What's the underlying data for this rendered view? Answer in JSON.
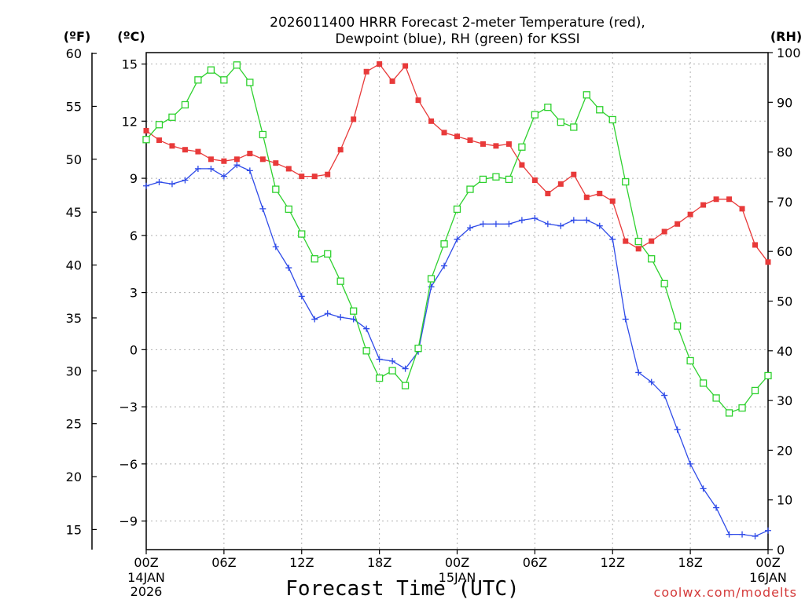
{
  "chart_data": {
    "type": "line",
    "title_lines": [
      "2026011400 HRRR Forecast 2-meter Temperature (red),",
      "Dewpoint (blue), RH (green) for KSSI"
    ],
    "units": {
      "fahrenheit": "(ºF)",
      "celsius": "(ºC)",
      "rh": "(RH)"
    },
    "xlabel": "Forecast Time (UTC)",
    "credit": "coolwx.com/modelts",
    "x_range_hours": [
      0,
      48
    ],
    "celsius_range": [
      -10.5,
      15.6
    ],
    "rh_range": [
      0,
      100
    ],
    "x_ticks": [
      {
        "hour": 0,
        "label": "00Z",
        "sub": [
          "14JAN",
          "2026"
        ]
      },
      {
        "hour": 6,
        "label": "06Z",
        "sub": []
      },
      {
        "hour": 12,
        "label": "12Z",
        "sub": []
      },
      {
        "hour": 18,
        "label": "18Z",
        "sub": []
      },
      {
        "hour": 24,
        "label": "00Z",
        "sub": [
          "15JAN"
        ]
      },
      {
        "hour": 30,
        "label": "06Z",
        "sub": []
      },
      {
        "hour": 36,
        "label": "12Z",
        "sub": []
      },
      {
        "hour": 42,
        "label": "18Z",
        "sub": []
      },
      {
        "hour": 48,
        "label": "00Z",
        "sub": [
          "16JAN"
        ]
      }
    ],
    "celsius_ticks": [
      {
        "value": 15,
        "label": "15"
      },
      {
        "value": 12,
        "label": "12"
      },
      {
        "value": 9,
        "label": "9"
      },
      {
        "value": 6,
        "label": "6"
      },
      {
        "value": 3,
        "label": "3"
      },
      {
        "value": 0,
        "label": "0"
      },
      {
        "value": -3,
        "label": "−3"
      },
      {
        "value": -6,
        "label": "−6"
      },
      {
        "value": -9,
        "label": "−9"
      }
    ],
    "fahrenheit_ticks": [
      {
        "value": 60,
        "label": "60"
      },
      {
        "value": 55,
        "label": "55"
      },
      {
        "value": 50,
        "label": "50"
      },
      {
        "value": 45,
        "label": "45"
      },
      {
        "value": 40,
        "label": "40"
      },
      {
        "value": 35,
        "label": "35"
      },
      {
        "value": 30,
        "label": "30"
      },
      {
        "value": 25,
        "label": "25"
      },
      {
        "value": 20,
        "label": "20"
      },
      {
        "value": 15,
        "label": "15"
      }
    ],
    "rh_ticks": [
      {
        "value": 100,
        "label": "100"
      },
      {
        "value": 90,
        "label": "90"
      },
      {
        "value": 80,
        "label": "80"
      },
      {
        "value": 70,
        "label": "70"
      },
      {
        "value": 60,
        "label": "60"
      },
      {
        "value": 50,
        "label": "50"
      },
      {
        "value": 40,
        "label": "40"
      },
      {
        "value": 30,
        "label": "30"
      },
      {
        "value": 20,
        "label": "20"
      },
      {
        "value": 10,
        "label": "10"
      },
      {
        "value": 0,
        "label": "0"
      }
    ],
    "series": [
      {
        "name": "2-meter Temperature",
        "axis": "celsius",
        "color": "#e83a3a",
        "marker": "filled-square",
        "values": [
          11.5,
          11.0,
          10.7,
          10.5,
          10.4,
          10.0,
          9.9,
          10.0,
          10.3,
          10.0,
          9.8,
          9.5,
          9.1,
          9.1,
          9.2,
          10.5,
          12.1,
          14.6,
          15.0,
          14.1,
          14.9,
          13.1,
          12.0,
          11.4,
          11.2,
          11.0,
          10.8,
          10.7,
          10.8,
          9.7,
          8.9,
          8.2,
          8.7,
          9.2,
          8.0,
          8.2,
          7.8,
          5.7,
          5.3,
          5.7,
          6.2,
          6.6,
          7.1,
          7.6,
          7.9,
          7.9,
          7.4,
          5.5,
          4.6
        ]
      },
      {
        "name": "Dewpoint",
        "axis": "celsius",
        "color": "#2f4be8",
        "marker": "plus",
        "values": [
          8.6,
          8.8,
          8.7,
          8.9,
          9.5,
          9.5,
          9.1,
          9.7,
          9.4,
          7.4,
          5.4,
          4.3,
          2.8,
          1.6,
          1.9,
          1.7,
          1.6,
          1.1,
          -0.5,
          -0.6,
          -1.0,
          -0.1,
          3.3,
          4.4,
          5.8,
          6.4,
          6.6,
          6.6,
          6.6,
          6.8,
          6.9,
          6.6,
          6.5,
          6.8,
          6.8,
          6.5,
          5.8,
          1.6,
          -1.2,
          -1.7,
          -2.4,
          -4.2,
          -6.0,
          -7.3,
          -8.3,
          -9.7,
          -9.7,
          -9.8,
          -9.5
        ]
      },
      {
        "name": "RH",
        "axis": "rh",
        "color": "#2ed12e",
        "marker": "open-square",
        "values": [
          82.5,
          85.5,
          87,
          89.5,
          94.5,
          96.5,
          94.5,
          97.5,
          94,
          83.5,
          72.5,
          68.5,
          63.5,
          58.5,
          59.5,
          54,
          48,
          40,
          34.5,
          36,
          33,
          40.5,
          54.5,
          61.5,
          68.5,
          72.5,
          74.5,
          75,
          74.5,
          81,
          87.5,
          89,
          86,
          85,
          91.5,
          88.5,
          86.5,
          74,
          62,
          58.5,
          53.5,
          45,
          38,
          33.5,
          30.5,
          27.5,
          28.5,
          32,
          35
        ]
      }
    ]
  }
}
